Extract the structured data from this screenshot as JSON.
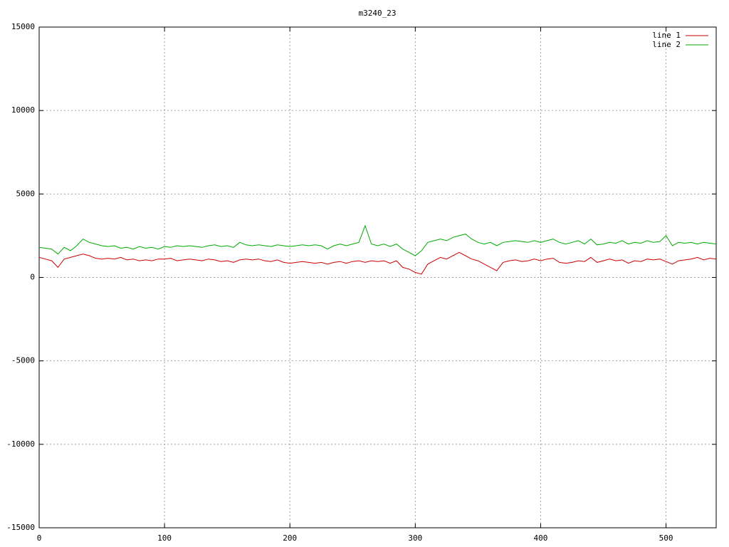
{
  "chart_data": {
    "type": "line",
    "title": "m3240_23",
    "x": [
      0,
      5,
      10,
      15,
      20,
      25,
      30,
      35,
      40,
      45,
      50,
      55,
      60,
      65,
      70,
      75,
      80,
      85,
      90,
      95,
      100,
      105,
      110,
      115,
      120,
      125,
      130,
      135,
      140,
      145,
      150,
      155,
      160,
      165,
      170,
      175,
      180,
      185,
      190,
      195,
      200,
      205,
      210,
      215,
      220,
      225,
      230,
      235,
      240,
      245,
      250,
      255,
      260,
      265,
      270,
      275,
      280,
      285,
      290,
      295,
      300,
      305,
      310,
      315,
      320,
      325,
      330,
      335,
      340,
      345,
      350,
      355,
      360,
      365,
      370,
      375,
      380,
      385,
      390,
      395,
      400,
      405,
      410,
      415,
      420,
      425,
      430,
      435,
      440,
      445,
      450,
      455,
      460,
      465,
      470,
      475,
      480,
      485,
      490,
      495,
      500,
      505,
      510,
      515,
      520,
      525,
      530,
      535,
      540
    ],
    "series": [
      {
        "name": "line 1",
        "color": "#cc0000",
        "values": [
          1200,
          1100,
          1000,
          600,
          1100,
          1200,
          1300,
          1400,
          1300,
          1150,
          1100,
          1150,
          1100,
          1200,
          1050,
          1100,
          1000,
          1050,
          1000,
          1100,
          1100,
          1150,
          1000,
          1050,
          1100,
          1050,
          1000,
          1100,
          1050,
          950,
          1000,
          900,
          1050,
          1100,
          1050,
          1100,
          1000,
          950,
          1050,
          900,
          850,
          900,
          950,
          900,
          850,
          900,
          800,
          900,
          950,
          850,
          950,
          1000,
          900,
          1000,
          950,
          1000,
          850,
          1000,
          600,
          500,
          300,
          200,
          800,
          1000,
          1200,
          1100,
          1300,
          1500,
          1300,
          1100,
          1000,
          800,
          600,
          400,
          900,
          1000,
          1050,
          950,
          1000,
          1100,
          1000,
          1100,
          1150,
          900,
          850,
          900,
          1000,
          950,
          1200,
          900,
          1000,
          1100,
          1000,
          1050,
          850,
          1000,
          950,
          1100,
          1050,
          1100,
          950,
          800,
          1000,
          1050,
          1100,
          1200,
          1050,
          1150,
          1100
        ]
      },
      {
        "name": "line 2",
        "color": "#00aa00",
        "values": [
          1800,
          1750,
          1700,
          1400,
          1800,
          1600,
          1900,
          2300,
          2100,
          2000,
          1900,
          1850,
          1900,
          1750,
          1800,
          1700,
          1850,
          1750,
          1800,
          1700,
          1850,
          1800,
          1900,
          1850,
          1900,
          1850,
          1800,
          1900,
          1950,
          1850,
          1900,
          1800,
          2100,
          1950,
          1900,
          1950,
          1900,
          1850,
          1950,
          1900,
          1850,
          1900,
          1950,
          1900,
          1950,
          1900,
          1700,
          1900,
          2000,
          1900,
          2000,
          2100,
          3100,
          2000,
          1900,
          2000,
          1850,
          2000,
          1700,
          1500,
          1300,
          1600,
          2100,
          2200,
          2300,
          2200,
          2400,
          2500,
          2600,
          2300,
          2100,
          2000,
          2100,
          1900,
          2100,
          2150,
          2200,
          2150,
          2100,
          2200,
          2100,
          2200,
          2300,
          2100,
          2000,
          2100,
          2200,
          2000,
          2300,
          1950,
          2000,
          2100,
          2050,
          2200,
          2000,
          2100,
          2050,
          2200,
          2100,
          2150,
          2500,
          1900,
          2100,
          2050,
          2100,
          2000,
          2100,
          2050,
          2000
        ]
      }
    ],
    "xlim": [
      0,
      540
    ],
    "xticks": [
      0,
      100,
      200,
      300,
      400,
      500
    ],
    "ylim": [
      -15000,
      15000
    ],
    "yticks": [
      -15000,
      -10000,
      -5000,
      0,
      5000,
      10000,
      15000
    ],
    "grid": true,
    "legend": "top-right"
  }
}
